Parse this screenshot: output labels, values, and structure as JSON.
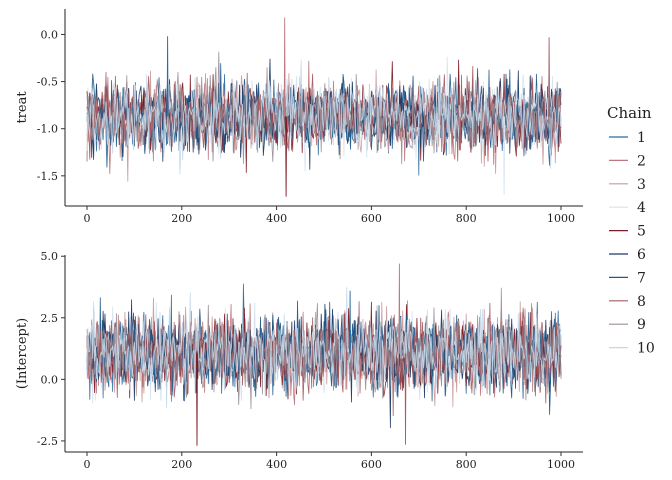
{
  "chart_data": [
    {
      "type": "line",
      "title": "",
      "xlabel": "",
      "ylabel": "treat",
      "xlim": [
        0,
        1000
      ],
      "ylim": [
        -1.82,
        0.27
      ],
      "xticks": [
        0,
        200,
        400,
        600,
        800,
        1000
      ],
      "yticks": [
        0.0,
        -0.5,
        -1.0,
        -1.5
      ],
      "ytick_labels": [
        "0.0",
        "-0.5",
        "-1.0",
        "-1.5"
      ],
      "center": -0.87,
      "spread": 0.18,
      "spikes": [
        {
          "x": 417,
          "y": 0.18
        },
        {
          "x": 420,
          "y": -1.72
        },
        {
          "x": 975,
          "y": -0.03
        },
        {
          "x": 170,
          "y": -0.02
        },
        {
          "x": 880,
          "y": -1.7
        }
      ],
      "grid": false
    },
    {
      "type": "line",
      "title": "",
      "xlabel": "",
      "ylabel": "(Intercept)",
      "xlim": [
        0,
        1000
      ],
      "ylim": [
        -2.95,
        5.05
      ],
      "xticks": [
        0,
        200,
        400,
        600,
        800,
        1000
      ],
      "yticks": [
        5.0,
        2.5,
        0.0,
        -2.5
      ],
      "ytick_labels": [
        "5.0",
        "2.5",
        "0.0",
        "-2.5"
      ],
      "center": 1.05,
      "spread": 0.75,
      "spikes": [
        {
          "x": 659,
          "y": 4.7
        },
        {
          "x": 232,
          "y": -2.7
        },
        {
          "x": 672,
          "y": -2.65
        },
        {
          "x": 555,
          "y": 3.6
        }
      ],
      "grid": false
    }
  ],
  "legend": {
    "title": "Chain",
    "placement": "right",
    "chains": [
      {
        "label": "1",
        "color": "#2e6a9e"
      },
      {
        "label": "2",
        "color": "#b9797d"
      },
      {
        "label": "3",
        "color": "#c99a9c"
      },
      {
        "label": "4",
        "color": "#d5e3ee"
      },
      {
        "label": "5",
        "color": "#7c1d25"
      },
      {
        "label": "6",
        "color": "#1d3a66"
      },
      {
        "label": "7",
        "color": "#1e5a8a"
      },
      {
        "label": "8",
        "color": "#a55d62"
      },
      {
        "label": "9",
        "color": "#9a8f97"
      },
      {
        "label": "10",
        "color": "#c5d8e8"
      }
    ]
  }
}
